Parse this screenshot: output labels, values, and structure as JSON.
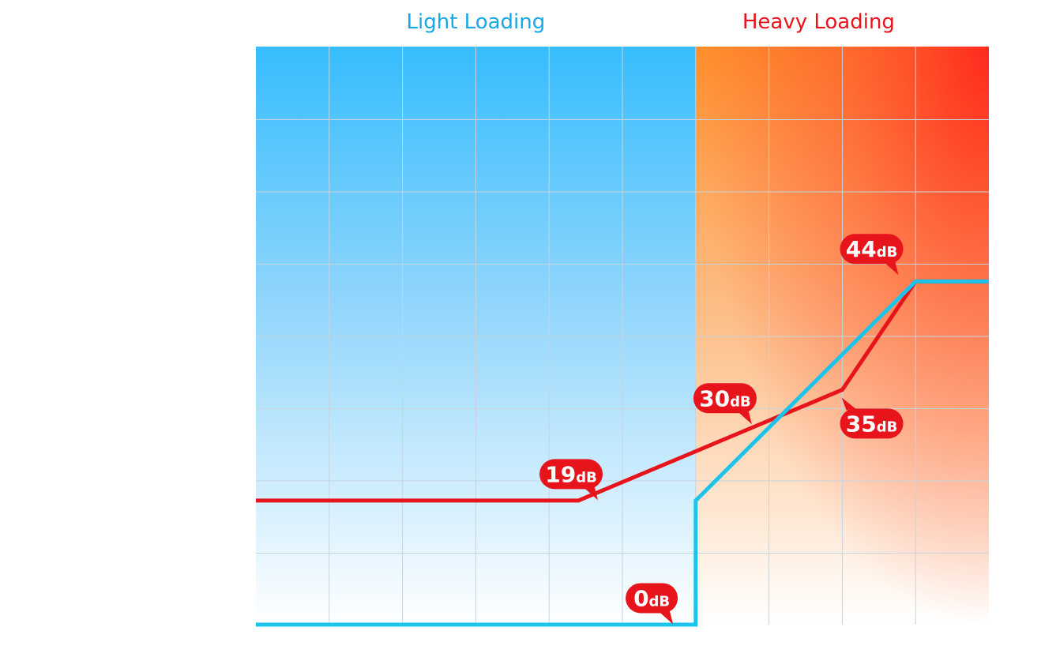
{
  "chart_data": {
    "type": "line",
    "title": "",
    "xlabel": "",
    "ylabel": "",
    "xlim": [
      0,
      10
    ],
    "ylim": [
      0,
      48
    ],
    "grid": true,
    "regions": [
      {
        "label": "Light Loading",
        "from": 0,
        "to": 6,
        "color": "#14a9e6"
      },
      {
        "label": "Heavy Loading",
        "from": 6,
        "to": 10,
        "color": "#e8141c"
      }
    ],
    "series": [
      {
        "color": "#e8141c",
        "x": [
          0,
          4.4,
          8.0,
          9.0,
          10
        ],
        "y": [
          10.3,
          10.3,
          19.5,
          28.5,
          28.5
        ]
      },
      {
        "color": "#1cc3ea",
        "x": [
          0,
          6.0,
          6.0,
          9.0,
          10
        ],
        "y": [
          0,
          0,
          10.3,
          28.5,
          28.5
        ]
      }
    ],
    "annotations": [
      {
        "value": "19",
        "unit": "dB",
        "x": 4.3,
        "y": 12.5,
        "pointer": "down-right"
      },
      {
        "value": "30",
        "unit": "dB",
        "x": 6.4,
        "y": 18.8,
        "pointer": "down-right"
      },
      {
        "value": "35",
        "unit": "dB",
        "x": 8.4,
        "y": 16.7,
        "pointer": "up-left"
      },
      {
        "value": "44",
        "unit": "dB",
        "x": 8.4,
        "y": 31.2,
        "pointer": "down-right"
      },
      {
        "value": "0",
        "unit": "dB",
        "x": 5.4,
        "y": 2.2,
        "pointer": "down-right"
      }
    ]
  }
}
